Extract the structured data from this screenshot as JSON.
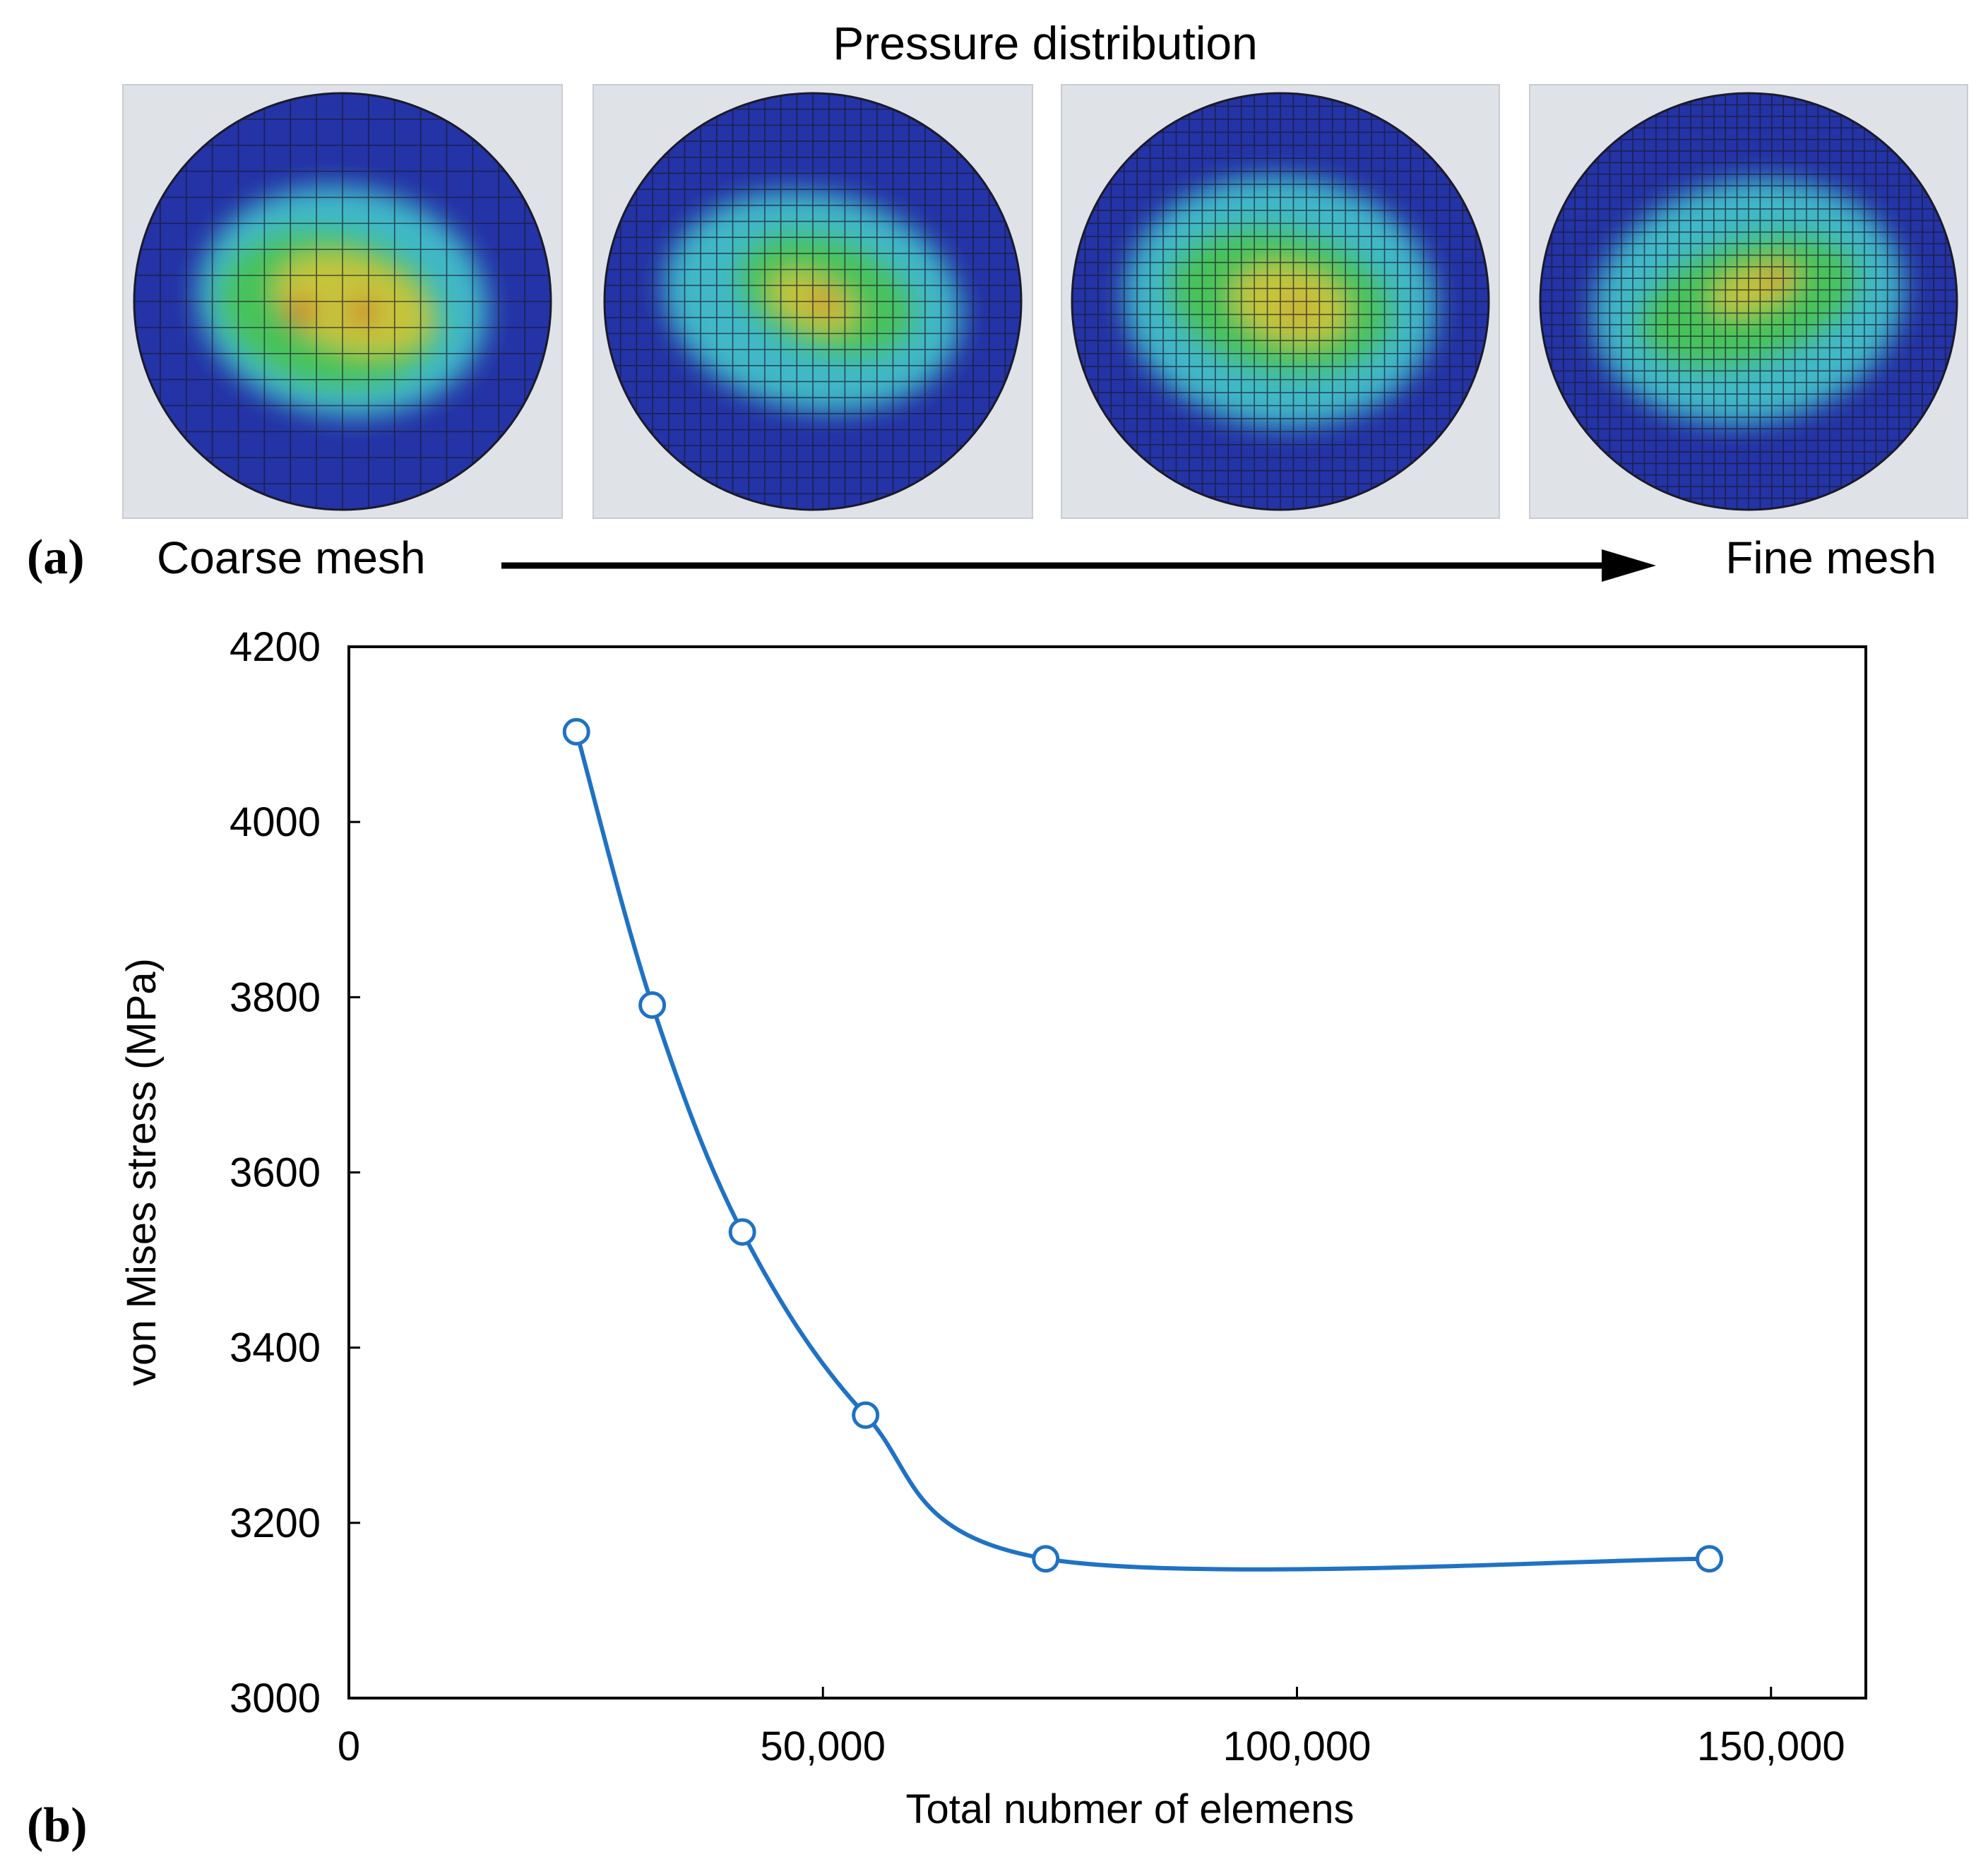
{
  "panel_a": {
    "label": "(a)",
    "title": "Pressure distribution",
    "left_label": "Coarse mesh",
    "right_label": "Fine mesh",
    "colors": {
      "background": "#dfe2e7",
      "low": "#2433a6",
      "mid_low": "#3fb8c8",
      "mid": "#46c25a",
      "mid_high": "#c6c43a",
      "high": "#d23a2a",
      "mesh_line": "#1a1a2a"
    },
    "images": [
      {
        "name": "coarse-mesh-pressure-map",
        "mesh_density": 16
      },
      {
        "name": "medium-mesh-pressure-map",
        "mesh_density": 26
      },
      {
        "name": "fine-mesh-pressure-map",
        "mesh_density": 32
      },
      {
        "name": "finest-mesh-pressure-map",
        "mesh_density": 36
      }
    ]
  },
  "panel_b": {
    "label": "(b)"
  },
  "chart_data": {
    "type": "line",
    "title": "",
    "xlabel": "Total nubmer of elemens",
    "ylabel": "von Mises stress (MPa)",
    "xlim": [
      0,
      160000
    ],
    "ylim": [
      3000,
      4200
    ],
    "xticks": [
      0,
      50000,
      100000,
      150000
    ],
    "xtick_labels": [
      "0",
      "50,000",
      "100,000",
      "150,000"
    ],
    "yticks": [
      3000,
      3200,
      3400,
      3600,
      3800,
      4000,
      4200
    ],
    "ytick_labels": [
      "3000",
      "3200",
      "3400",
      "3600",
      "3800",
      "4000",
      "4200"
    ],
    "grid": false,
    "line_color": "#1f72c4",
    "marker": "open-circle",
    "smooth": true,
    "series": [
      {
        "x": [
          24000,
          32000,
          41500,
          54500,
          73500,
          143500
        ],
        "y": [
          4103,
          3791,
          3532,
          3323,
          3159,
          3159
        ]
      }
    ]
  }
}
